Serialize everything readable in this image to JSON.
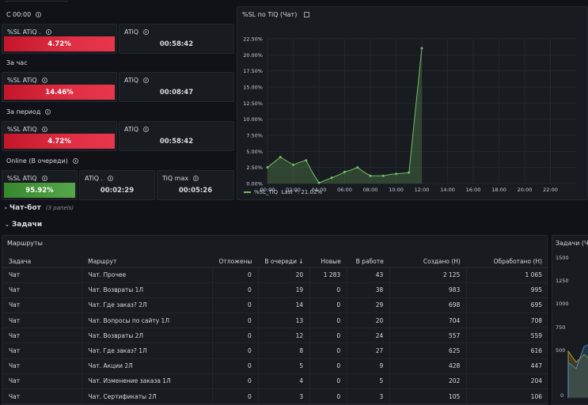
{
  "sections": {
    "since_midnight": "С 00:00",
    "hour": "За час",
    "period": "За период",
    "online": "Online (В очереди)"
  },
  "stats": {
    "r1_sl": {
      "title": "%SL ATiQ .",
      "value": "4.72%"
    },
    "r1_atiq": {
      "title": "ATiQ",
      "value": "00:58:42"
    },
    "r2_sl": {
      "title": "%SL ATiQ",
      "value": "14.46%"
    },
    "r2_atiq": {
      "title": "ATiQ",
      "value": "00:08:47"
    },
    "r3_sl": {
      "title": "%SL ATiQ",
      "value": "4.72%"
    },
    "r3_atiq": {
      "title": "ATiQ",
      "value": "00:58:42"
    },
    "r4_sl": {
      "title": "%SL ATiQ",
      "value": "95.92%"
    },
    "r4_atiq": {
      "title": "ATiQ .",
      "value": "00:02:29"
    },
    "r4_tiqmax": {
      "title": "TiQ max",
      "value": "00:05:26"
    }
  },
  "chart": {
    "title": "%SL по TiQ (Чат)",
    "legend_label": "%SL_TiQ",
    "legend_last": "Last *: 21.02%"
  },
  "chart_data": {
    "type": "area",
    "title": "%SL по TiQ (Чат)",
    "x": [
      "00:00",
      "00:30",
      "01:00",
      "01:30",
      "02:00",
      "02:30",
      "03:00",
      "03:30",
      "04:00",
      "04:30",
      "05:00",
      "05:30",
      "06:00",
      "06:30",
      "07:00",
      "07:30",
      "08:00",
      "08:30",
      "09:00",
      "09:30",
      "10:00",
      "10:30",
      "11:00",
      "11:30",
      "12:00"
    ],
    "series": [
      {
        "name": "%SL_TiQ",
        "values": [
          2.5,
          3.3,
          4.1,
          3.5,
          2.9,
          3.3,
          3.6,
          1.7,
          0.1,
          0.5,
          0.9,
          1.3,
          1.8,
          2.1,
          2.5,
          1.8,
          1.2,
          1.2,
          1.2,
          1.4,
          1.5,
          1.6,
          1.7,
          11.4,
          21.02
        ]
      }
    ],
    "x_ticks": [
      "00:00",
      "02:00",
      "04:00",
      "06:00",
      "08:00",
      "10:00",
      "12:00",
      "14:00",
      "16:00",
      "18:00",
      "20:00",
      "22:00"
    ],
    "y_ticks": [
      "0.00%",
      "2.50%",
      "5.00%",
      "7.50%",
      "10.00%",
      "12.50%",
      "15.00%",
      "17.50%",
      "20.00%",
      "22.50%"
    ],
    "xlim_hours": [
      0,
      24
    ],
    "ylim": [
      0,
      22.5
    ],
    "grid": true,
    "legend": "bottom-left"
  },
  "rows": {
    "chatbot": {
      "label": "Чат-бот",
      "sub": "(3 panels)"
    },
    "tasks": {
      "label": "Задачи"
    }
  },
  "routes_panel": {
    "title": "Маршруты",
    "columns": [
      "Задача",
      "Маршрут",
      "Отложены",
      "В очереди",
      "Новые",
      "В работе",
      "Создано (Н)",
      "Обработано (Н)"
    ],
    "rows": [
      [
        "Чат",
        "Чат. Прочее",
        "0",
        "20",
        "1 283",
        "43",
        "2 125",
        "1 065"
      ],
      [
        "Чат",
        "Чат. Возвраты 1Л",
        "0",
        "19",
        "0",
        "38",
        "983",
        "995"
      ],
      [
        "Чат",
        "Чат. Где заказ? 2Л",
        "0",
        "14",
        "0",
        "29",
        "698",
        "695"
      ],
      [
        "Чат",
        "Чат. Вопросы по сайту 1Л",
        "0",
        "13",
        "0",
        "20",
        "704",
        "708"
      ],
      [
        "Чат",
        "Чат. Возвраты 2Л",
        "0",
        "12",
        "0",
        "24",
        "557",
        "559"
      ],
      [
        "Чат",
        "Чат. Где заказ? 1Л",
        "0",
        "8",
        "0",
        "27",
        "625",
        "616"
      ],
      [
        "Чат",
        "Чат. Акции 2Л",
        "0",
        "5",
        "0",
        "9",
        "428",
        "447"
      ],
      [
        "Чат",
        "Чат. Изменение заказа 1Л",
        "0",
        "4",
        "0",
        "5",
        "202",
        "204"
      ],
      [
        "Чат",
        "Чат. Сертификаты 2Л",
        "0",
        "3",
        "0",
        "3",
        "105",
        "106"
      ]
    ]
  },
  "tasks_panel": {
    "title": "Задачи (Ча",
    "y_ticks": [
      "1500",
      "1250",
      "1000",
      "750",
      "500",
      "0"
    ]
  },
  "colors": {
    "red": "#e02f44",
    "green": "#56a64b",
    "line": "#73bf69",
    "bg": "#111217",
    "panel": "#181b1f"
  }
}
